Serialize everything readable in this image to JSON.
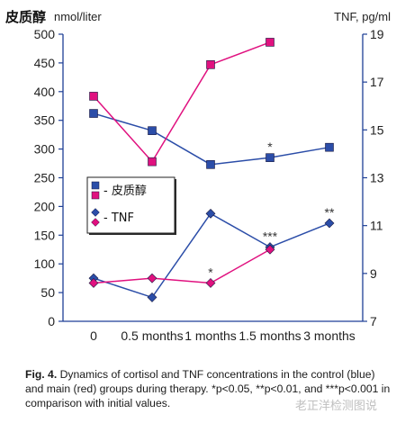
{
  "chart_data": {
    "type": "line",
    "categories": [
      "0",
      "0.5 months",
      "1 months",
      "1.5 months",
      "3 months"
    ],
    "left_axis": {
      "unit_cn": "皮质醇",
      "unit": "nmol/liter",
      "ylim": [
        0,
        500
      ],
      "ticks": [
        "0",
        "50",
        "100",
        "150",
        "200",
        "250",
        "300",
        "350",
        "400",
        "450",
        "500"
      ]
    },
    "right_axis": {
      "unit": "TNF, pg/ml",
      "ylim": [
        7,
        19
      ],
      "ticks": [
        "7",
        "9",
        "11",
        "13",
        "15",
        "17",
        "19"
      ]
    },
    "series": [
      {
        "name": "- 皮质醇",
        "group": "control",
        "axis": "left",
        "marker": "square",
        "color": "#2b4da8",
        "values": [
          362,
          332,
          273,
          285,
          303
        ]
      },
      {
        "name": "- 皮质醇",
        "group": "main",
        "axis": "left",
        "marker": "square",
        "color": "#e0117f",
        "values": [
          392,
          278,
          447,
          486,
          null
        ]
      },
      {
        "name": "- TNF",
        "group": "control",
        "axis": "right",
        "marker": "diamond",
        "color": "#2b4da8",
        "values": [
          8.8,
          8.0,
          11.5,
          10.1,
          11.1
        ]
      },
      {
        "name": "- TNF",
        "group": "main",
        "axis": "right",
        "marker": "diamond",
        "color": "#e0117f",
        "values": [
          8.6,
          8.8,
          8.6,
          10.0,
          null
        ]
      }
    ],
    "annotations": [
      {
        "text": "*",
        "category": "1.5 months",
        "axis": "left",
        "value": 285
      },
      {
        "text": "*",
        "category": "1 months",
        "axis": "right",
        "value": 8.6
      },
      {
        "text": "***",
        "category": "1.5 months",
        "axis": "right",
        "value": 10.1
      },
      {
        "text": "**",
        "category": "3 months",
        "axis": "right",
        "value": 11.1
      }
    ],
    "legend": {
      "position": "left-middle",
      "entries": [
        {
          "label": "- 皮质醇",
          "colors": [
            "#2b4da8",
            "#e0117f"
          ],
          "marker": "square"
        },
        {
          "label": "- TNF",
          "colors": [
            "#2b4da8",
            "#e0117f"
          ],
          "marker": "diamond"
        }
      ]
    },
    "colors": {
      "axis": "#1e3f96",
      "control": "#2b4da8",
      "main": "#e0117f"
    },
    "grid": false
  },
  "caption": {
    "label": "Fig. 4.",
    "text": "Dynamics of cortisol and TNF concentrations in the control (blue) and main (red) groups during therapy. *p<0.05, **p<0.01, and ***p<0.001 in comparison with initial values."
  },
  "watermark": "老正洋检测图说"
}
